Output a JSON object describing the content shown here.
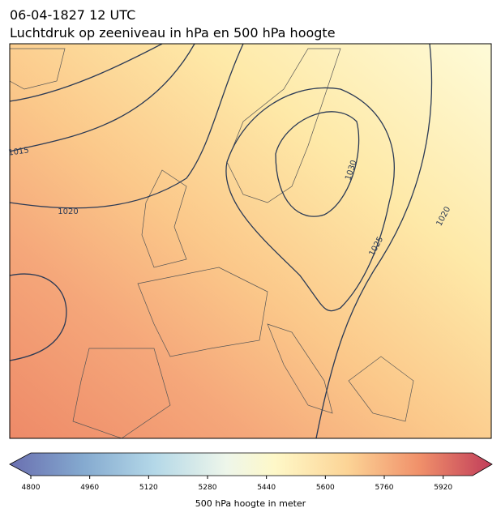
{
  "header": {
    "date": "06-04-1827 12 UTC",
    "title": "Luchtdruk op zeeniveau in hPa en 500 hPa hoogte"
  },
  "map": {
    "isobar_labels": [
      1015,
      1020,
      1030,
      1025,
      1020
    ]
  },
  "colorbar": {
    "label": "500 hPa hoogte in meter",
    "lim": [
      4800,
      6000
    ],
    "ticks": [
      4800,
      4960,
      5120,
      5280,
      5440,
      5600,
      5760,
      5920
    ]
  }
}
